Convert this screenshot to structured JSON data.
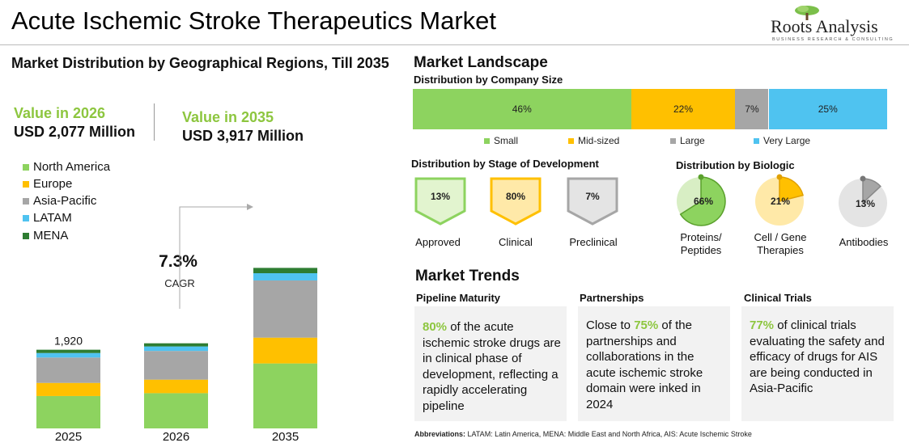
{
  "header": {
    "title": "Acute Ischemic Stroke Therapeutics Market",
    "logo_name": "Roots Analysis",
    "logo_tagline": "BUSINESS RESEARCH & CONSULTING"
  },
  "left_panel": {
    "title": "Market Distribution by Geographical Regions, Till 2035",
    "value_2026_label": "Value in 2026",
    "value_2026_amount": "USD 2,077 Million",
    "value_2035_label": "Value in 2035",
    "value_2035_amount": "USD 3,917 Million",
    "cagr_value": "7.3%",
    "cagr_label": "CAGR",
    "legend": [
      {
        "name": "North America",
        "color": "#8dd35f"
      },
      {
        "name": "Europe",
        "color": "#ffc000"
      },
      {
        "name": "Asia-Pacific",
        "color": "#a6a6a6"
      },
      {
        "name": "LATAM",
        "color": "#4fc3f0"
      },
      {
        "name": "MENA",
        "color": "#2e7d32"
      }
    ]
  },
  "chart_data": [
    {
      "type": "bar",
      "stacked": true,
      "categories": [
        "2025",
        "2026",
        "2035"
      ],
      "series": [
        {
          "name": "North America",
          "values": [
            790,
            860,
            1585
          ],
          "color": "#8dd35f"
        },
        {
          "name": "Europe",
          "values": [
            320,
            330,
            630
          ],
          "color": "#ffc000"
        },
        {
          "name": "Asia-Pacific",
          "values": [
            620,
            700,
            1395
          ],
          "color": "#a6a6a6"
        },
        {
          "name": "LATAM",
          "values": [
            110,
            110,
            177
          ],
          "color": "#4fc3f0"
        },
        {
          "name": "MENA",
          "values": [
            80,
            77,
            130
          ],
          "color": "#2e7d32"
        }
      ],
      "data_labels": [
        {
          "category": "2025",
          "text": "1,920"
        }
      ],
      "annotation": {
        "text": "7.3%",
        "label": "CAGR"
      }
    },
    {
      "type": "bar",
      "stacked": true,
      "orientation": "horizontal",
      "subtitle": "Distribution by Company Size",
      "categories": [
        "Small",
        "Mid-sized",
        "Large",
        "Very Large"
      ],
      "values": [
        46,
        22,
        7,
        25
      ],
      "labels": [
        "46%",
        "22%",
        "7%",
        "25%"
      ],
      "colors": [
        "#8dd35f",
        "#ffc000",
        "#a6a6a6",
        "#4fc3f0"
      ]
    },
    {
      "type": "pie",
      "subtitle": "Distribution by Biologic",
      "categories": [
        "Proteins/ Peptides",
        "Cell / Gene Therapies",
        "Antibodies"
      ],
      "values": [
        66,
        21,
        13
      ],
      "labels": [
        "66%",
        "21%",
        "13%"
      ]
    }
  ],
  "landscape": {
    "title": "Market Landscape",
    "company_size_title": "Distribution by Company Size",
    "stage_title": "Distribution by Stage of Development",
    "stages": [
      {
        "name": "Approved",
        "value": "13%",
        "border": "#8dd35f",
        "fill": "#e2f4cf"
      },
      {
        "name": "Clinical",
        "value": "80%",
        "border": "#ffc000",
        "fill": "#ffe9a8"
      },
      {
        "name": "Preclinical",
        "value": "7%",
        "border": "#a6a6a6",
        "fill": "#e4e4e4"
      }
    ],
    "biologic_title": "Distribution by Biologic",
    "biologics": [
      {
        "name": "Proteins/ Peptides",
        "value": "66%"
      },
      {
        "name": "Cell / Gene Therapies",
        "value": "21%"
      },
      {
        "name": "Antibodies",
        "value": "13%"
      }
    ]
  },
  "trends": {
    "title": "Market Trends",
    "items": [
      {
        "title": "Pipeline Maturity",
        "highlight": "80%",
        "text": " of the acute ischemic stroke drugs are in clinical phase of development, reflecting a rapidly accelerating pipeline",
        "prefix": ""
      },
      {
        "title": "Partnerships",
        "prefix": "Close to ",
        "highlight": "75%",
        "text": " of the partnerships and collaborations in the acute ischemic stroke domain were inked in 2024"
      },
      {
        "title": "Clinical Trials",
        "prefix": "",
        "highlight": "77%",
        "text": " of clinical trials evaluating the safety and efficacy of drugs for AIS are being conducted in Asia-Pacific"
      }
    ]
  },
  "abbreviations": {
    "label": "Abbreviations:",
    "text": " LATAM: Latin America, MENA: Middle East and North Africa, AIS: Acute Ischemic Stroke"
  }
}
